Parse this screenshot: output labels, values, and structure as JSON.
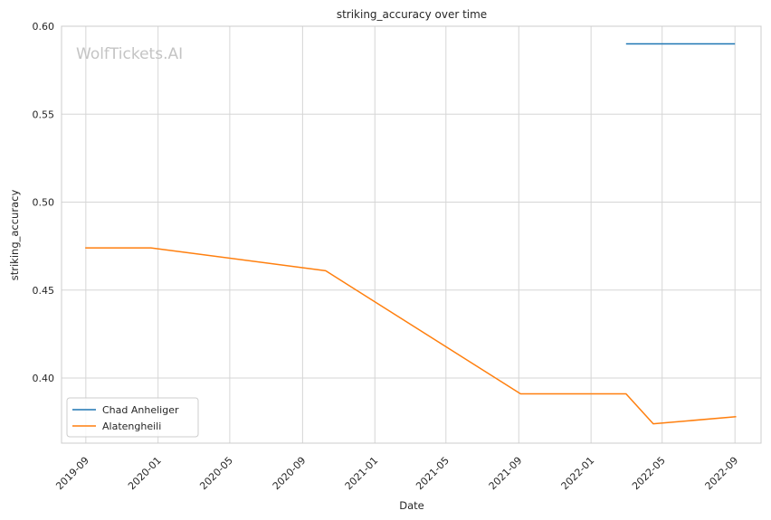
{
  "chart_data": {
    "type": "line",
    "title": "striking_accuracy over time",
    "xlabel": "Date",
    "ylabel": "striking_accuracy",
    "watermark": "WolfTickets.AI",
    "x_ticks": [
      "2019-09",
      "2020-01",
      "2020-05",
      "2020-09",
      "2021-01",
      "2021-05",
      "2021-09",
      "2022-01",
      "2022-05",
      "2022-09"
    ],
    "y_ticks": [
      "0.40",
      "0.45",
      "0.50",
      "0.55",
      "0.60"
    ],
    "ylim": [
      0.363,
      0.6
    ],
    "xlim": [
      "2019-07-22",
      "2022-10-15"
    ],
    "grid": true,
    "legend_position": "lower-left",
    "series": [
      {
        "name": "Chad Anheliger",
        "color": "#1f77b4",
        "points": [
          {
            "x": "2022-03-01",
            "y": 0.59
          },
          {
            "x": "2022-09-01",
            "y": 0.59
          }
        ]
      },
      {
        "name": "Alatengheili",
        "color": "#ff7f0e",
        "points": [
          {
            "x": "2019-08-31",
            "y": 0.474
          },
          {
            "x": "2019-12-20",
            "y": 0.474
          },
          {
            "x": "2020-10-10",
            "y": 0.461
          },
          {
            "x": "2021-09-04",
            "y": 0.391
          },
          {
            "x": "2022-03-01",
            "y": 0.391
          },
          {
            "x": "2022-04-16",
            "y": 0.374
          },
          {
            "x": "2022-09-03",
            "y": 0.378
          }
        ]
      }
    ]
  }
}
